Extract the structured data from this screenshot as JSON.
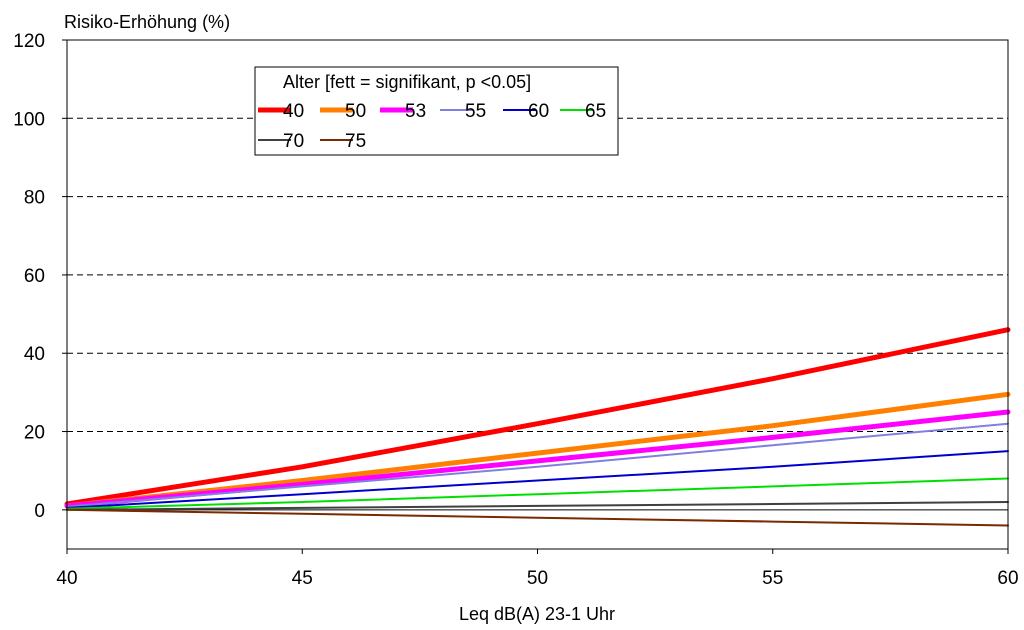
{
  "chart_data": {
    "type": "line",
    "ylabel": "Risiko-Erhöhung (%)",
    "xlabel": "Leq dB(A) 23-1 Uhr",
    "xlim": [
      40,
      60
    ],
    "ylim": [
      -10,
      120
    ],
    "xticks": [
      "40",
      "45",
      "50",
      "55",
      "60"
    ],
    "yticks": [
      "0",
      "20",
      "40",
      "60",
      "80",
      "100",
      "120"
    ],
    "grid": "horizontal dashed",
    "legend": {
      "title": "Alter [fett = signifikant, p <0.05]",
      "placement": "top-left"
    },
    "x": [
      40,
      45,
      50,
      55,
      60
    ],
    "series": [
      {
        "name": "40",
        "color": "#ff0000",
        "bold": true,
        "values": [
          1.5,
          11,
          22,
          33.5,
          46
        ]
      },
      {
        "name": "50",
        "color": "#ff8000",
        "bold": true,
        "values": [
          1,
          7.5,
          14.5,
          21.5,
          29.5
        ]
      },
      {
        "name": "53",
        "color": "#ff00ff",
        "bold": true,
        "values": [
          1,
          6.5,
          12.5,
          18.5,
          25
        ]
      },
      {
        "name": "55",
        "color": "#8080e0",
        "bold": false,
        "values": [
          0.8,
          6,
          11,
          16.5,
          22
        ]
      },
      {
        "name": "60",
        "color": "#0000cc",
        "bold": false,
        "values": [
          0.5,
          4,
          7.5,
          11,
          15
        ]
      },
      {
        "name": "65",
        "color": "#00e000",
        "bold": false,
        "values": [
          0.3,
          2,
          4,
          6,
          8
        ]
      },
      {
        "name": "70",
        "color": "#404040",
        "bold": false,
        "values": [
          0,
          0.5,
          1,
          1.5,
          2
        ]
      },
      {
        "name": "75",
        "color": "#7a2a00",
        "bold": false,
        "values": [
          0,
          -1,
          -2,
          -3,
          -4
        ]
      }
    ]
  }
}
